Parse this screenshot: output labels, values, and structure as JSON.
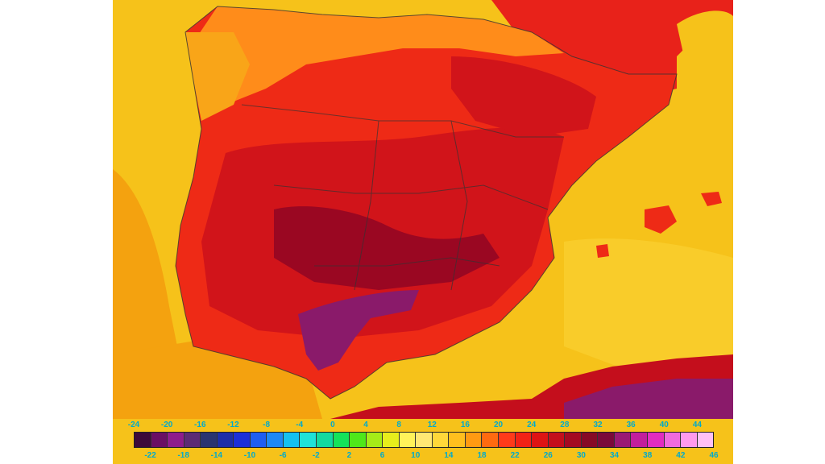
{
  "map": {
    "region": "Iberian Peninsula",
    "variable": "temperature",
    "colors": {
      "sea": "#f6c21a",
      "sea_warm": "#f4a20f",
      "land_hot": "#ee2a16",
      "land_hotter": "#d1141a",
      "land_hottest": "#9a0722",
      "land_extreme": "#8a1a6a",
      "coast_cool": "#ff8c1a",
      "border_line": "#333333"
    }
  },
  "legend": {
    "top_labels": [
      "-24",
      "-20",
      "-16",
      "-12",
      "-8",
      "-4",
      "0",
      "4",
      "8",
      "12",
      "16",
      "20",
      "24",
      "28",
      "32",
      "36",
      "40",
      "44"
    ],
    "bottom_labels": [
      "-22",
      "-18",
      "-14",
      "-10",
      "-6",
      "-2",
      "2",
      "6",
      "10",
      "14",
      "18",
      "22",
      "26",
      "30",
      "34",
      "38",
      "42",
      "46"
    ],
    "colors": [
      "#3d0a3a",
      "#6a0f64",
      "#8e1c8c",
      "#5c2b74",
      "#2a3470",
      "#1d2ea8",
      "#1c2fd8",
      "#1f5ef0",
      "#1e88f4",
      "#15c1f0",
      "#1ee2d9",
      "#13d9a0",
      "#15e35a",
      "#4fe81a",
      "#a5ec18",
      "#e7ee1c",
      "#fff35a",
      "#ffe874",
      "#ffd83a",
      "#ffbf1e",
      "#ff9a12",
      "#ff6a10",
      "#ff3a1a",
      "#f22216",
      "#de1414",
      "#c40e1c",
      "#a40a22",
      "#860a26",
      "#7a0a3a",
      "#9a1a74",
      "#c21e9c",
      "#e22cc0",
      "#f06ade",
      "#ff9aee",
      "#ffc0f6"
    ]
  }
}
